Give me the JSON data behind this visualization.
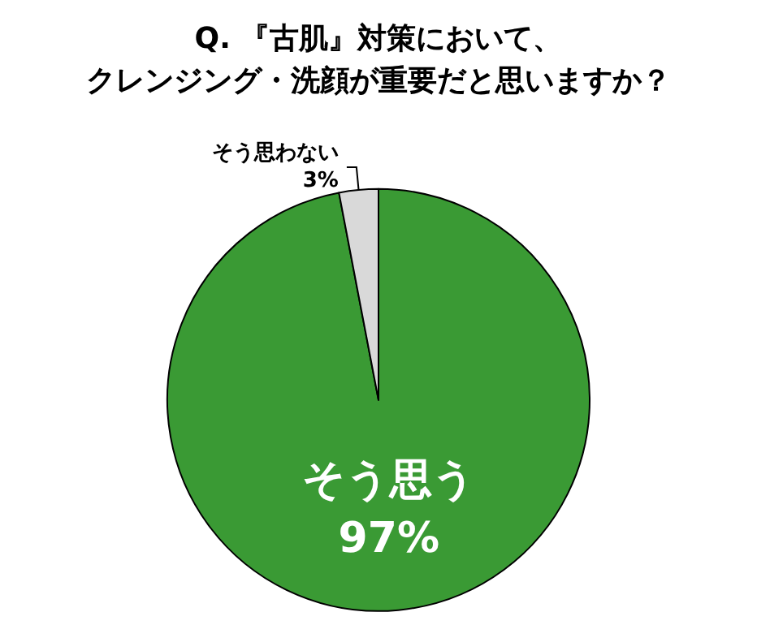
{
  "chart_data": {
    "type": "pie",
    "title": "Q. 『古肌』対策において、クレンジング・洗顔が重要だと思いますか？",
    "categories": [
      "そう思う",
      "そう思わない"
    ],
    "values": [
      97,
      3
    ],
    "colors": [
      "#3a9a34",
      "#d9d9d9"
    ],
    "value_labels": [
      "97%",
      "3%"
    ],
    "legend": false
  }
}
